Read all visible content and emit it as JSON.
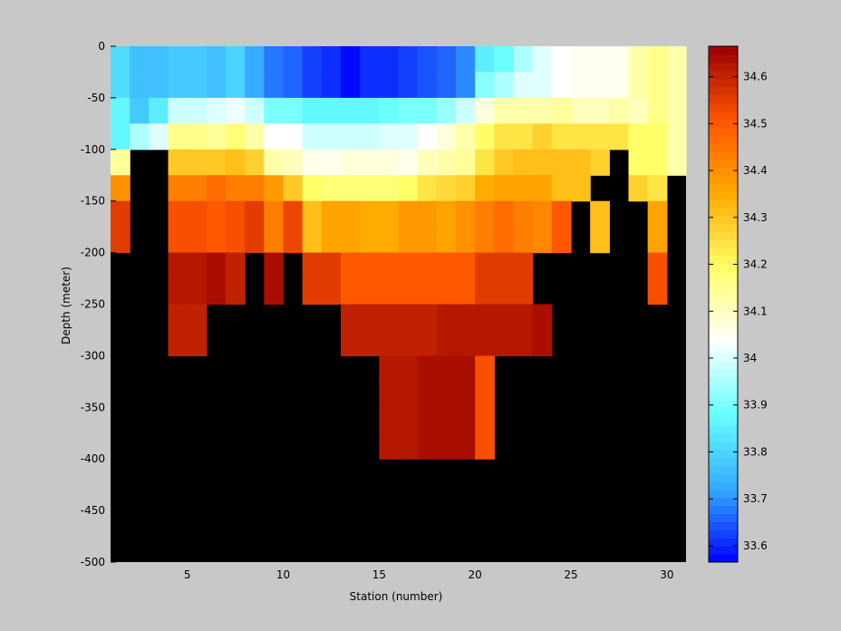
{
  "chart_data": {
    "type": "heatmap",
    "title": "",
    "xlabel": "Station (number)",
    "ylabel": "Depth (meter)",
    "xlim": [
      1,
      31
    ],
    "ylim": [
      -500,
      0
    ],
    "x_ticks": [
      5,
      10,
      15,
      20,
      25,
      30
    ],
    "y_ticks": [
      0,
      -50,
      -100,
      -150,
      -200,
      -250,
      -300,
      -350,
      -400,
      -450,
      -500
    ],
    "cell_depth_step": 25,
    "missing_color": "#000000",
    "stations": [
      1,
      2,
      3,
      4,
      5,
      6,
      7,
      8,
      9,
      10,
      11,
      12,
      13,
      14,
      15,
      16,
      17,
      18,
      19,
      20,
      21,
      22,
      23,
      24,
      25,
      26,
      27,
      28,
      29,
      30
    ],
    "depths": [
      0,
      -25,
      -50,
      -75,
      -100,
      -125,
      -150,
      -175,
      -200,
      -225,
      -250,
      -275,
      -300,
      -325,
      -350,
      -375,
      -400,
      -425,
      -450,
      -475
    ],
    "values": [
      [
        33.82,
        33.76,
        33.76,
        33.78,
        33.78,
        33.76,
        33.8,
        33.72,
        33.68,
        33.66,
        33.62,
        33.6,
        33.58,
        33.6,
        33.6,
        33.62,
        33.64,
        33.66,
        33.7,
        33.84,
        33.88,
        33.96,
        34.0,
        34.04,
        34.06,
        34.06,
        34.06,
        34.12,
        34.16,
        34.12
      ],
      [
        33.82,
        33.76,
        33.76,
        33.78,
        33.78,
        33.76,
        33.8,
        33.72,
        33.68,
        33.66,
        33.62,
        33.6,
        33.58,
        33.6,
        33.6,
        33.62,
        33.64,
        33.66,
        33.7,
        33.92,
        33.96,
        34.0,
        34.0,
        34.04,
        34.06,
        34.06,
        34.06,
        34.12,
        34.16,
        34.12
      ],
      [
        33.86,
        33.78,
        33.84,
        33.98,
        33.98,
        34.0,
        34.02,
        33.98,
        33.9,
        33.9,
        33.86,
        33.86,
        33.86,
        33.86,
        33.88,
        33.9,
        33.9,
        33.94,
        33.98,
        34.08,
        34.12,
        34.12,
        34.12,
        34.14,
        34.1,
        34.1,
        34.12,
        34.1,
        34.16,
        34.12
      ],
      [
        33.86,
        33.96,
        34.0,
        34.16,
        34.16,
        34.14,
        34.18,
        34.12,
        34.04,
        34.04,
        33.98,
        33.98,
        33.98,
        33.98,
        34.0,
        34.0,
        34.04,
        34.08,
        34.12,
        34.2,
        34.24,
        34.24,
        34.28,
        34.24,
        34.24,
        34.24,
        34.24,
        34.2,
        34.2,
        34.12
      ],
      [
        34.14,
        null,
        null,
        34.3,
        34.3,
        34.3,
        34.32,
        34.28,
        34.12,
        34.1,
        34.06,
        34.06,
        34.08,
        34.08,
        34.08,
        34.06,
        34.1,
        34.12,
        34.14,
        34.24,
        34.3,
        34.32,
        34.32,
        34.32,
        34.32,
        34.28,
        null,
        34.2,
        34.2,
        34.12
      ],
      [
        34.4,
        null,
        null,
        34.44,
        34.44,
        34.46,
        34.44,
        34.44,
        34.38,
        34.3,
        34.2,
        34.18,
        34.18,
        34.18,
        34.18,
        34.2,
        34.24,
        34.26,
        34.28,
        34.34,
        34.36,
        34.36,
        34.36,
        34.32,
        34.32,
        null,
        null,
        34.28,
        34.24,
        null
      ],
      [
        34.56,
        null,
        null,
        34.52,
        34.52,
        34.5,
        34.52,
        34.56,
        34.44,
        34.54,
        34.32,
        34.36,
        34.36,
        34.34,
        34.34,
        34.38,
        34.38,
        34.36,
        34.4,
        34.44,
        34.46,
        34.44,
        34.42,
        34.5,
        null,
        34.32,
        null,
        null,
        34.36,
        null
      ],
      [
        34.56,
        null,
        null,
        34.52,
        34.52,
        34.5,
        34.52,
        34.56,
        34.44,
        34.54,
        34.32,
        34.36,
        34.36,
        34.34,
        34.34,
        34.38,
        34.38,
        34.36,
        34.4,
        34.44,
        34.46,
        34.44,
        34.42,
        34.5,
        null,
        34.32,
        null,
        null,
        34.36,
        null
      ],
      [
        null,
        null,
        null,
        34.62,
        34.62,
        34.64,
        34.6,
        null,
        34.64,
        null,
        34.56,
        34.56,
        34.5,
        34.5,
        34.5,
        34.5,
        34.5,
        34.5,
        34.5,
        34.56,
        34.56,
        34.56,
        null,
        null,
        null,
        null,
        null,
        null,
        34.52,
        null
      ],
      [
        null,
        null,
        null,
        34.62,
        34.62,
        34.64,
        34.6,
        null,
        34.64,
        null,
        34.56,
        34.56,
        34.5,
        34.5,
        34.5,
        34.5,
        34.5,
        34.5,
        34.5,
        34.56,
        34.56,
        34.56,
        null,
        null,
        null,
        null,
        null,
        null,
        34.52,
        null
      ],
      [
        null,
        null,
        null,
        34.6,
        34.6,
        null,
        null,
        null,
        null,
        null,
        null,
        null,
        34.6,
        34.6,
        34.6,
        34.6,
        34.6,
        34.62,
        34.62,
        34.62,
        34.62,
        34.62,
        34.64,
        null,
        null,
        null,
        null,
        null,
        null,
        null
      ],
      [
        null,
        null,
        null,
        34.6,
        34.6,
        null,
        null,
        null,
        null,
        null,
        null,
        null,
        34.6,
        34.6,
        34.6,
        34.6,
        34.6,
        34.62,
        34.62,
        34.62,
        34.62,
        34.62,
        34.64,
        null,
        null,
        null,
        null,
        null,
        null,
        null
      ],
      [
        null,
        null,
        null,
        null,
        null,
        null,
        null,
        null,
        null,
        null,
        null,
        null,
        null,
        null,
        34.62,
        34.62,
        34.64,
        34.64,
        34.64,
        34.52,
        null,
        null,
        null,
        null,
        null,
        null,
        null,
        null,
        null,
        null
      ],
      [
        null,
        null,
        null,
        null,
        null,
        null,
        null,
        null,
        null,
        null,
        null,
        null,
        null,
        null,
        34.62,
        34.62,
        34.64,
        34.64,
        34.64,
        34.52,
        null,
        null,
        null,
        null,
        null,
        null,
        null,
        null,
        null,
        null
      ],
      [
        null,
        null,
        null,
        null,
        null,
        null,
        null,
        null,
        null,
        null,
        null,
        null,
        null,
        null,
        34.62,
        34.62,
        34.64,
        34.64,
        34.64,
        34.52,
        null,
        null,
        null,
        null,
        null,
        null,
        null,
        null,
        null,
        null
      ],
      [
        null,
        null,
        null,
        null,
        null,
        null,
        null,
        null,
        null,
        null,
        null,
        null,
        null,
        null,
        34.62,
        34.62,
        34.64,
        34.64,
        34.64,
        34.52,
        null,
        null,
        null,
        null,
        null,
        null,
        null,
        null,
        null,
        null
      ],
      [
        null,
        null,
        null,
        null,
        null,
        null,
        null,
        null,
        null,
        null,
        null,
        null,
        null,
        null,
        null,
        null,
        null,
        null,
        null,
        null,
        null,
        null,
        null,
        null,
        null,
        null,
        null,
        null,
        null,
        null
      ],
      [
        null,
        null,
        null,
        null,
        null,
        null,
        null,
        null,
        null,
        null,
        null,
        null,
        null,
        null,
        null,
        null,
        null,
        null,
        null,
        null,
        null,
        null,
        null,
        null,
        null,
        null,
        null,
        null,
        null,
        null
      ],
      [
        null,
        null,
        null,
        null,
        null,
        null,
        null,
        null,
        null,
        null,
        null,
        null,
        null,
        null,
        null,
        null,
        null,
        null,
        null,
        null,
        null,
        null,
        null,
        null,
        null,
        null,
        null,
        null,
        null,
        null
      ],
      [
        null,
        null,
        null,
        null,
        null,
        null,
        null,
        null,
        null,
        null,
        null,
        null,
        null,
        null,
        null,
        null,
        null,
        null,
        null,
        null,
        null,
        null,
        null,
        null,
        null,
        null,
        null,
        null,
        null,
        null
      ]
    ],
    "colorbar": {
      "clim": [
        33.565,
        34.665
      ],
      "ticks": [
        33.6,
        33.7,
        33.8,
        33.9,
        34,
        34.1,
        34.2,
        34.3,
        34.4,
        34.5,
        34.6
      ],
      "tick_labels": [
        "33.6",
        "33.7",
        "33.8",
        "33.9",
        "34",
        "34.1",
        "34.2",
        "34.3",
        "34.4",
        "34.5",
        "34.6"
      ],
      "colormap": [
        "#0000ff",
        "#33aaff",
        "#66ffff",
        "#ffffff",
        "#ffff66",
        "#ffaa00",
        "#ff5500",
        "#990000"
      ],
      "levels": 64
    }
  }
}
